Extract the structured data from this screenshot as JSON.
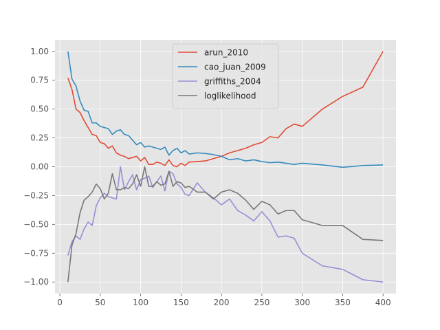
{
  "chart_data": {
    "type": "line",
    "title": "",
    "xlabel": "",
    "ylabel": "",
    "xlim": [
      -6,
      416
    ],
    "ylim": [
      -1.1,
      1.1
    ],
    "grid": true,
    "legend_position": "top-center",
    "x_ticks": [
      0,
      50,
      100,
      150,
      200,
      250,
      300,
      350,
      400
    ],
    "y_ticks": [
      -1.0,
      -0.75,
      -0.5,
      -0.25,
      0.0,
      0.25,
      0.5,
      0.75,
      1.0
    ],
    "x_tick_labels": [
      "0",
      "50",
      "100",
      "150",
      "200",
      "250",
      "300",
      "350",
      "400"
    ],
    "y_tick_labels": [
      "−1.00",
      "−0.75",
      "−0.50",
      "−0.25",
      "0.00",
      "0.25",
      "0.50",
      "0.75",
      "1.00"
    ],
    "background_color": "#E5E5E5",
    "grid_color": "#FFFFFF",
    "series": [
      {
        "name": "arun_2010",
        "color": "#E24A33",
        "points": [
          [
            10,
            0.77
          ],
          [
            15,
            0.67
          ],
          [
            20,
            0.5
          ],
          [
            25,
            0.47
          ],
          [
            30,
            0.4
          ],
          [
            35,
            0.34
          ],
          [
            40,
            0.28
          ],
          [
            45,
            0.27
          ],
          [
            50,
            0.21
          ],
          [
            55,
            0.2
          ],
          [
            60,
            0.16
          ],
          [
            65,
            0.18
          ],
          [
            70,
            0.12
          ],
          [
            75,
            0.1
          ],
          [
            80,
            0.09
          ],
          [
            85,
            0.07
          ],
          [
            90,
            0.08
          ],
          [
            95,
            0.09
          ],
          [
            100,
            0.05
          ],
          [
            105,
            0.08
          ],
          [
            110,
            0.02
          ],
          [
            115,
            0.02
          ],
          [
            120,
            0.04
          ],
          [
            125,
            0.03
          ],
          [
            130,
            0.01
          ],
          [
            135,
            0.06
          ],
          [
            140,
            0.01
          ],
          [
            145,
            0.0
          ],
          [
            150,
            0.03
          ],
          [
            155,
            0.01
          ],
          [
            160,
            0.04
          ],
          [
            170,
            0.045
          ],
          [
            180,
            0.05
          ],
          [
            190,
            0.07
          ],
          [
            200,
            0.09
          ],
          [
            210,
            0.12
          ],
          [
            220,
            0.14
          ],
          [
            230,
            0.16
          ],
          [
            240,
            0.19
          ],
          [
            250,
            0.21
          ],
          [
            260,
            0.26
          ],
          [
            270,
            0.25
          ],
          [
            280,
            0.33
          ],
          [
            290,
            0.37
          ],
          [
            300,
            0.35
          ],
          [
            325,
            0.5
          ],
          [
            350,
            0.61
          ],
          [
            375,
            0.69
          ],
          [
            400,
            1.0
          ]
        ]
      },
      {
        "name": "cao_juan_2009",
        "color": "#348ABD",
        "points": [
          [
            10,
            1.0
          ],
          [
            15,
            0.76
          ],
          [
            20,
            0.7
          ],
          [
            25,
            0.57
          ],
          [
            30,
            0.49
          ],
          [
            35,
            0.48
          ],
          [
            40,
            0.38
          ],
          [
            45,
            0.38
          ],
          [
            50,
            0.35
          ],
          [
            55,
            0.34
          ],
          [
            60,
            0.33
          ],
          [
            65,
            0.28
          ],
          [
            70,
            0.31
          ],
          [
            75,
            0.32
          ],
          [
            80,
            0.28
          ],
          [
            85,
            0.27
          ],
          [
            90,
            0.23
          ],
          [
            95,
            0.19
          ],
          [
            100,
            0.21
          ],
          [
            105,
            0.17
          ],
          [
            110,
            0.18
          ],
          [
            115,
            0.17
          ],
          [
            120,
            0.16
          ],
          [
            125,
            0.15
          ],
          [
            130,
            0.17
          ],
          [
            135,
            0.1
          ],
          [
            140,
            0.14
          ],
          [
            145,
            0.16
          ],
          [
            150,
            0.12
          ],
          [
            155,
            0.14
          ],
          [
            160,
            0.11
          ],
          [
            170,
            0.12
          ],
          [
            180,
            0.115
          ],
          [
            190,
            0.105
          ],
          [
            200,
            0.09
          ],
          [
            210,
            0.06
          ],
          [
            220,
            0.07
          ],
          [
            230,
            0.05
          ],
          [
            240,
            0.06
          ],
          [
            250,
            0.045
          ],
          [
            260,
            0.035
          ],
          [
            270,
            0.04
          ],
          [
            280,
            0.03
          ],
          [
            290,
            0.02
          ],
          [
            300,
            0.03
          ],
          [
            325,
            0.015
          ],
          [
            350,
            -0.005
          ],
          [
            375,
            0.01
          ],
          [
            400,
            0.015
          ]
        ]
      },
      {
        "name": "griffiths_2004",
        "color": "#988ED5",
        "points": [
          [
            10,
            -0.77
          ],
          [
            15,
            -0.65
          ],
          [
            20,
            -0.6
          ],
          [
            25,
            -0.63
          ],
          [
            30,
            -0.54
          ],
          [
            35,
            -0.48
          ],
          [
            40,
            -0.51
          ],
          [
            45,
            -0.34
          ],
          [
            50,
            -0.27
          ],
          [
            55,
            -0.23
          ],
          [
            60,
            -0.26
          ],
          [
            65,
            -0.27
          ],
          [
            70,
            -0.28
          ],
          [
            75,
            0.0
          ],
          [
            80,
            -0.2
          ],
          [
            85,
            -0.13
          ],
          [
            90,
            -0.07
          ],
          [
            95,
            -0.2
          ],
          [
            100,
            -0.11
          ],
          [
            105,
            -0.1
          ],
          [
            110,
            -0.08
          ],
          [
            115,
            -0.18
          ],
          [
            120,
            -0.13
          ],
          [
            125,
            -0.08
          ],
          [
            130,
            -0.21
          ],
          [
            135,
            -0.04
          ],
          [
            140,
            -0.06
          ],
          [
            145,
            -0.15
          ],
          [
            150,
            -0.18
          ],
          [
            155,
            -0.24
          ],
          [
            160,
            -0.25
          ],
          [
            170,
            -0.14
          ],
          [
            180,
            -0.22
          ],
          [
            190,
            -0.27
          ],
          [
            200,
            -0.33
          ],
          [
            210,
            -0.28
          ],
          [
            220,
            -0.38
          ],
          [
            230,
            -0.42
          ],
          [
            240,
            -0.47
          ],
          [
            250,
            -0.39
          ],
          [
            260,
            -0.47
          ],
          [
            270,
            -0.61
          ],
          [
            280,
            -0.6
          ],
          [
            290,
            -0.62
          ],
          [
            300,
            -0.75
          ],
          [
            325,
            -0.86
          ],
          [
            350,
            -0.89
          ],
          [
            375,
            -0.98
          ],
          [
            400,
            -1.0
          ]
        ]
      },
      {
        "name": "loglikelihood",
        "color": "#777777",
        "points": [
          [
            10,
            -1.0
          ],
          [
            15,
            -0.68
          ],
          [
            20,
            -0.58
          ],
          [
            25,
            -0.4
          ],
          [
            30,
            -0.29
          ],
          [
            35,
            -0.26
          ],
          [
            40,
            -0.22
          ],
          [
            45,
            -0.15
          ],
          [
            50,
            -0.19
          ],
          [
            55,
            -0.28
          ],
          [
            60,
            -0.23
          ],
          [
            65,
            -0.06
          ],
          [
            70,
            -0.2
          ],
          [
            75,
            -0.2
          ],
          [
            80,
            -0.18
          ],
          [
            85,
            -0.19
          ],
          [
            90,
            -0.15
          ],
          [
            95,
            -0.07
          ],
          [
            100,
            -0.17
          ],
          [
            105,
            0.0
          ],
          [
            110,
            -0.17
          ],
          [
            115,
            -0.17
          ],
          [
            120,
            -0.13
          ],
          [
            125,
            -0.16
          ],
          [
            130,
            -0.15
          ],
          [
            135,
            -0.04
          ],
          [
            140,
            -0.17
          ],
          [
            145,
            -0.13
          ],
          [
            150,
            -0.14
          ],
          [
            155,
            -0.18
          ],
          [
            160,
            -0.17
          ],
          [
            170,
            -0.22
          ],
          [
            180,
            -0.22
          ],
          [
            190,
            -0.28
          ],
          [
            200,
            -0.22
          ],
          [
            210,
            -0.2
          ],
          [
            220,
            -0.23
          ],
          [
            230,
            -0.29
          ],
          [
            240,
            -0.37
          ],
          [
            250,
            -0.3
          ],
          [
            260,
            -0.33
          ],
          [
            270,
            -0.41
          ],
          [
            280,
            -0.38
          ],
          [
            290,
            -0.38
          ],
          [
            300,
            -0.46
          ],
          [
            325,
            -0.51
          ],
          [
            350,
            -0.51
          ],
          [
            375,
            -0.63
          ],
          [
            400,
            -0.64
          ]
        ]
      }
    ]
  }
}
